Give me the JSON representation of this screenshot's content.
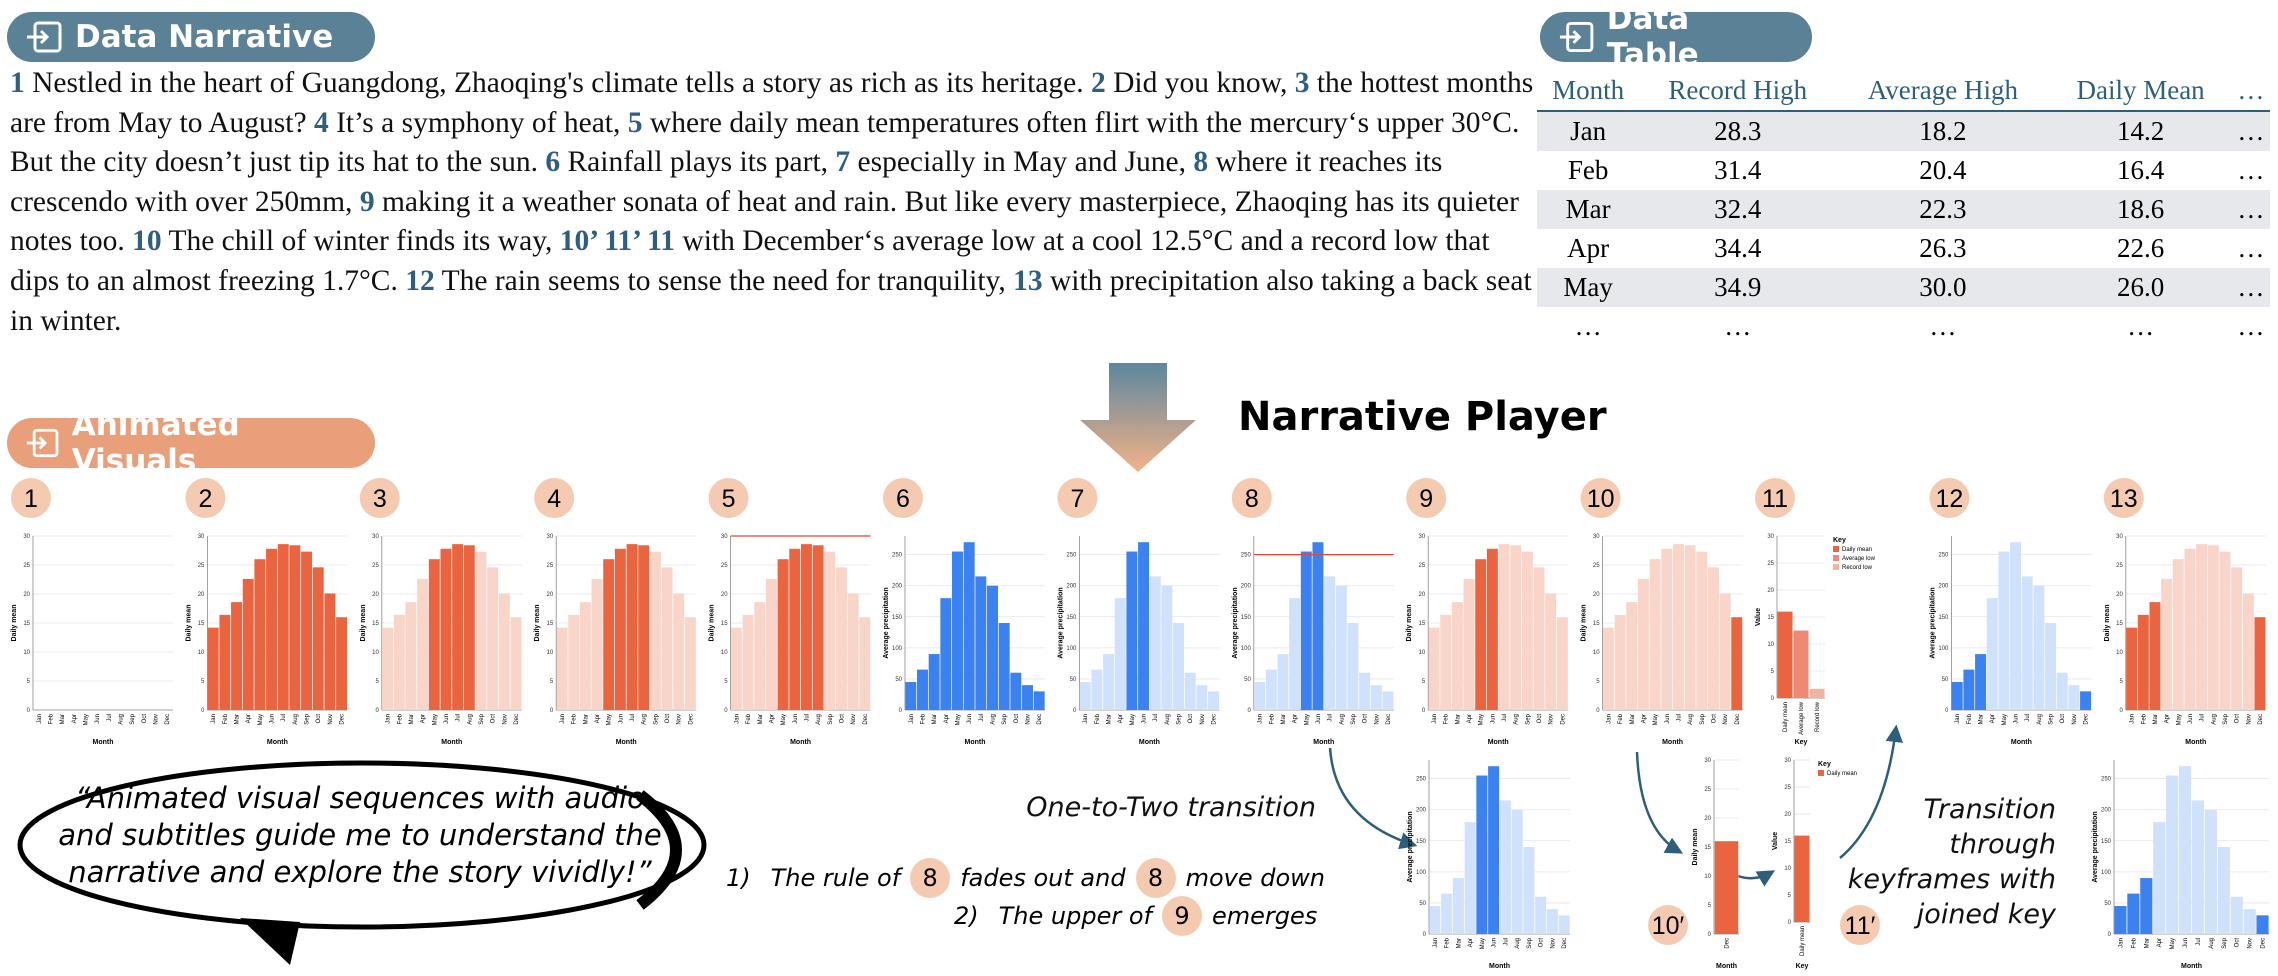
{
  "narrative": {
    "title": "Data Narrative",
    "segments": [
      {
        "num": "1",
        "text": "Nestled in the heart of Guangdong, Zhaoqing's climate tells a story as rich as its heritage."
      },
      {
        "num": "2",
        "text": "Did you know,"
      },
      {
        "num": "3",
        "text": "the hottest months are from May to August?"
      },
      {
        "num": "4",
        "text": "It’s a symphony of heat,"
      },
      {
        "num": "5",
        "text": "where daily mean temperatures often flirt with the mercury‘s upper 30°C. But the city doesn’t just tip its hat to the sun."
      },
      {
        "num": "6",
        "text": "Rainfall plays its part,"
      },
      {
        "num": "7",
        "text": "especially in May and June,"
      },
      {
        "num": "8",
        "text": "where it reaches its crescendo with over 250mm,"
      },
      {
        "num": "9",
        "text": "making it a weather sonata of heat and rain. But like every masterpiece, Zhaoqing has its quieter notes too."
      },
      {
        "num": "10",
        "text": "The chill of winter finds its way,"
      },
      {
        "num": "10’ 11’ 11",
        "text": "with December‘s average low at a cool 12.5°C and a record low that dips to an almost freezing 1.7°C."
      },
      {
        "num": "12",
        "text": "The rain seems to sense the need for tranquility,"
      },
      {
        "num": "13",
        "text": "with precipitation also taking a back seat in winter."
      }
    ]
  },
  "table": {
    "title": "Data Table",
    "header": [
      "Month",
      "Record High",
      "Average High",
      "Daily Mean",
      "…"
    ],
    "rows": [
      [
        "Jan",
        "28.3",
        "18.2",
        "14.2",
        "…"
      ],
      [
        "Feb",
        "31.4",
        "20.4",
        "16.4",
        "…"
      ],
      [
        "Mar",
        "32.4",
        "22.3",
        "18.6",
        "…"
      ],
      [
        "Apr",
        "34.4",
        "26.3",
        "22.6",
        "…"
      ],
      [
        "May",
        "34.9",
        "30.0",
        "26.0",
        "…"
      ],
      [
        "…",
        "…",
        "…",
        "…",
        "…"
      ]
    ]
  },
  "player": {
    "title": "Narrative Player"
  },
  "visuals": {
    "title": "Animated Visuals"
  },
  "charts": {
    "mean": {
      "ylabel": "Daily mean",
      "xlabel": "Month",
      "categories": [
        "Jan",
        "Feb",
        "Mar",
        "Apr",
        "May",
        "Jun",
        "Jul",
        "Aug",
        "Sep",
        "Oct",
        "Nov",
        "Dec"
      ],
      "values": [
        14.2,
        16.4,
        18.6,
        22.6,
        26.0,
        27.8,
        28.6,
        28.4,
        27.3,
        24.6,
        20.1,
        16.0
      ],
      "ylim": [
        0,
        30
      ],
      "yticks": [
        0,
        5,
        10,
        15,
        20,
        25,
        30
      ],
      "color": "#ea6440",
      "faded_color": "#f9d4c8"
    },
    "precip": {
      "ylabel": "Average precipitation",
      "xlabel": "Month",
      "categories": [
        "Jan",
        "Feb",
        "Mar",
        "Apr",
        "May",
        "Jun",
        "Jul",
        "Aug",
        "Sep",
        "Oct",
        "Nov",
        "Dec"
      ],
      "values": [
        45,
        65,
        90,
        180,
        255,
        270,
        215,
        200,
        140,
        60,
        40,
        30
      ],
      "ylim": [
        0,
        280
      ],
      "yticks": [
        0,
        50,
        100,
        150,
        200,
        250
      ],
      "color": "#3b82f0",
      "faded_color": "#d0e2fb"
    },
    "key": {
      "ylabel": "Value",
      "xlabel": "Key",
      "key_title": "Key",
      "categories": [
        "Daily mean",
        "Average low",
        "Record low"
      ],
      "values": [
        16.0,
        12.5,
        1.7
      ],
      "ylim": [
        0,
        30
      ],
      "yticks": [
        0,
        5,
        10,
        15,
        20,
        25,
        30
      ],
      "colors": [
        "#ea6440",
        "#ee8a74",
        "#f3b3a2"
      ]
    }
  },
  "frames": [
    {
      "label": "1",
      "chart": "mean",
      "bars": []
    },
    {
      "label": "2",
      "chart": "mean"
    },
    {
      "label": "3",
      "chart": "mean",
      "hi": [
        4,
        5,
        6,
        7
      ]
    },
    {
      "label": "4",
      "chart": "mean",
      "hi": [
        4,
        5,
        6,
        7
      ]
    },
    {
      "label": "5",
      "chart": "mean",
      "hi": [
        4,
        5,
        6,
        7
      ],
      "rule": 30
    },
    {
      "label": "6",
      "chart": "precip"
    },
    {
      "label": "7",
      "chart": "precip",
      "hi": [
        4,
        5
      ]
    },
    {
      "label": "8",
      "chart": "precip",
      "hi": [
        4,
        5
      ],
      "rule": 250
    },
    {
      "label": "9",
      "chart": "mean",
      "hi": [
        4,
        5
      ]
    },
    {
      "label": "10",
      "chart": "mean",
      "hi": [
        11
      ]
    },
    {
      "label": "11",
      "chart": "key",
      "key": true
    },
    {
      "label": "12",
      "chart": "precip",
      "hi": [
        0,
        1,
        2,
        11
      ]
    },
    {
      "label": "13",
      "chart": "mean",
      "hi": [
        0,
        1,
        2,
        11
      ]
    }
  ],
  "sub_frames": [
    {
      "chart": "precip",
      "hi": [
        4,
        5
      ]
    },
    {
      "label": "10′",
      "chart": "mean",
      "cats": [
        11
      ]
    },
    {
      "label": "11′",
      "chart": "key",
      "cats": [
        0
      ],
      "key": true
    },
    {
      "chart": "precip",
      "hi": [
        0,
        1,
        2,
        11
      ]
    }
  ],
  "quote": [
    "“Animated visual sequences with audio",
    "and subtitles guide me to understand the",
    "narrative and explore the story vividly!”"
  ],
  "one_to_two": {
    "title": "One-to-Two transition",
    "steps": [
      {
        "num": "1)",
        "parts": [
          "The rule of",
          "8",
          "fades out and",
          "8",
          "move down"
        ]
      },
      {
        "num": "2)",
        "parts": [
          "The upper of",
          "9",
          "emerges"
        ]
      }
    ]
  },
  "keyframes_note": [
    "Transition",
    "through",
    "keyframes with",
    "joined key"
  ]
}
